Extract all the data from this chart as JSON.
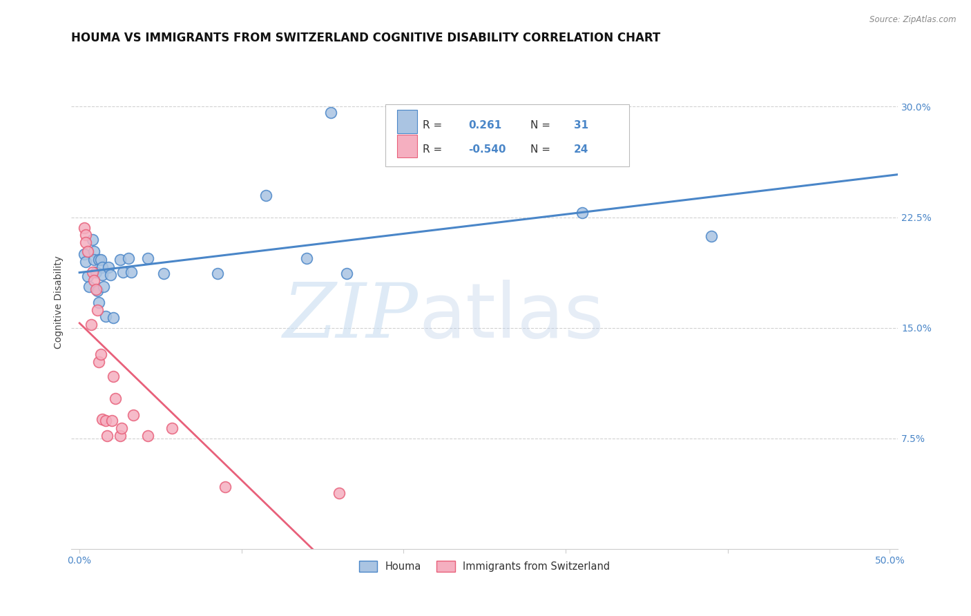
{
  "title": "HOUMA VS IMMIGRANTS FROM SWITZERLAND COGNITIVE DISABILITY CORRELATION CHART",
  "source": "Source: ZipAtlas.com",
  "ylabel": "Cognitive Disability",
  "x_ticks": [
    0.0,
    0.1,
    0.2,
    0.3,
    0.4,
    0.5
  ],
  "x_tick_labels": [
    "0.0%",
    "",
    "",
    "",
    "",
    "50.0%"
  ],
  "y_tick_labels": [
    "7.5%",
    "15.0%",
    "22.5%",
    "30.0%"
  ],
  "y_ticks": [
    0.075,
    0.15,
    0.225,
    0.3
  ],
  "xlim": [
    -0.005,
    0.505
  ],
  "ylim": [
    0.0,
    0.335
  ],
  "legend_labels": [
    "Houma",
    "Immigrants from Switzerland"
  ],
  "r_houma": 0.261,
  "n_houma": 31,
  "r_swiss": -0.54,
  "n_swiss": 24,
  "houma_color": "#aac4e2",
  "swiss_color": "#f5afc0",
  "houma_line_color": "#4a86c8",
  "swiss_line_color": "#e8607a",
  "background_color": "#ffffff",
  "grid_color": "#cccccc",
  "title_fontsize": 12,
  "axis_fontsize": 10,
  "tick_fontsize": 10,
  "houma_x": [
    0.003,
    0.004,
    0.005,
    0.006,
    0.008,
    0.009,
    0.009,
    0.01,
    0.011,
    0.012,
    0.012,
    0.013,
    0.014,
    0.014,
    0.015,
    0.016,
    0.018,
    0.019,
    0.021,
    0.025,
    0.027,
    0.03,
    0.032,
    0.042,
    0.052,
    0.085,
    0.115,
    0.14,
    0.165,
    0.31,
    0.39
  ],
  "houma_y": [
    0.2,
    0.195,
    0.185,
    0.178,
    0.21,
    0.202,
    0.196,
    0.188,
    0.175,
    0.167,
    0.196,
    0.196,
    0.191,
    0.186,
    0.178,
    0.158,
    0.191,
    0.186,
    0.157,
    0.196,
    0.188,
    0.197,
    0.188,
    0.197,
    0.187,
    0.187,
    0.24,
    0.197,
    0.187,
    0.228,
    0.212
  ],
  "houma_outlier_x": [
    0.155
  ],
  "houma_outlier_y": [
    0.296
  ],
  "swiss_x": [
    0.003,
    0.004,
    0.004,
    0.005,
    0.007,
    0.008,
    0.009,
    0.01,
    0.011,
    0.012,
    0.013,
    0.014,
    0.016,
    0.017,
    0.02,
    0.021,
    0.022,
    0.025,
    0.026,
    0.033,
    0.042,
    0.057,
    0.09,
    0.16
  ],
  "swiss_y": [
    0.218,
    0.213,
    0.208,
    0.202,
    0.152,
    0.188,
    0.182,
    0.176,
    0.162,
    0.127,
    0.132,
    0.088,
    0.087,
    0.077,
    0.087,
    0.117,
    0.102,
    0.077,
    0.082,
    0.091,
    0.077,
    0.082,
    0.042,
    0.038
  ]
}
